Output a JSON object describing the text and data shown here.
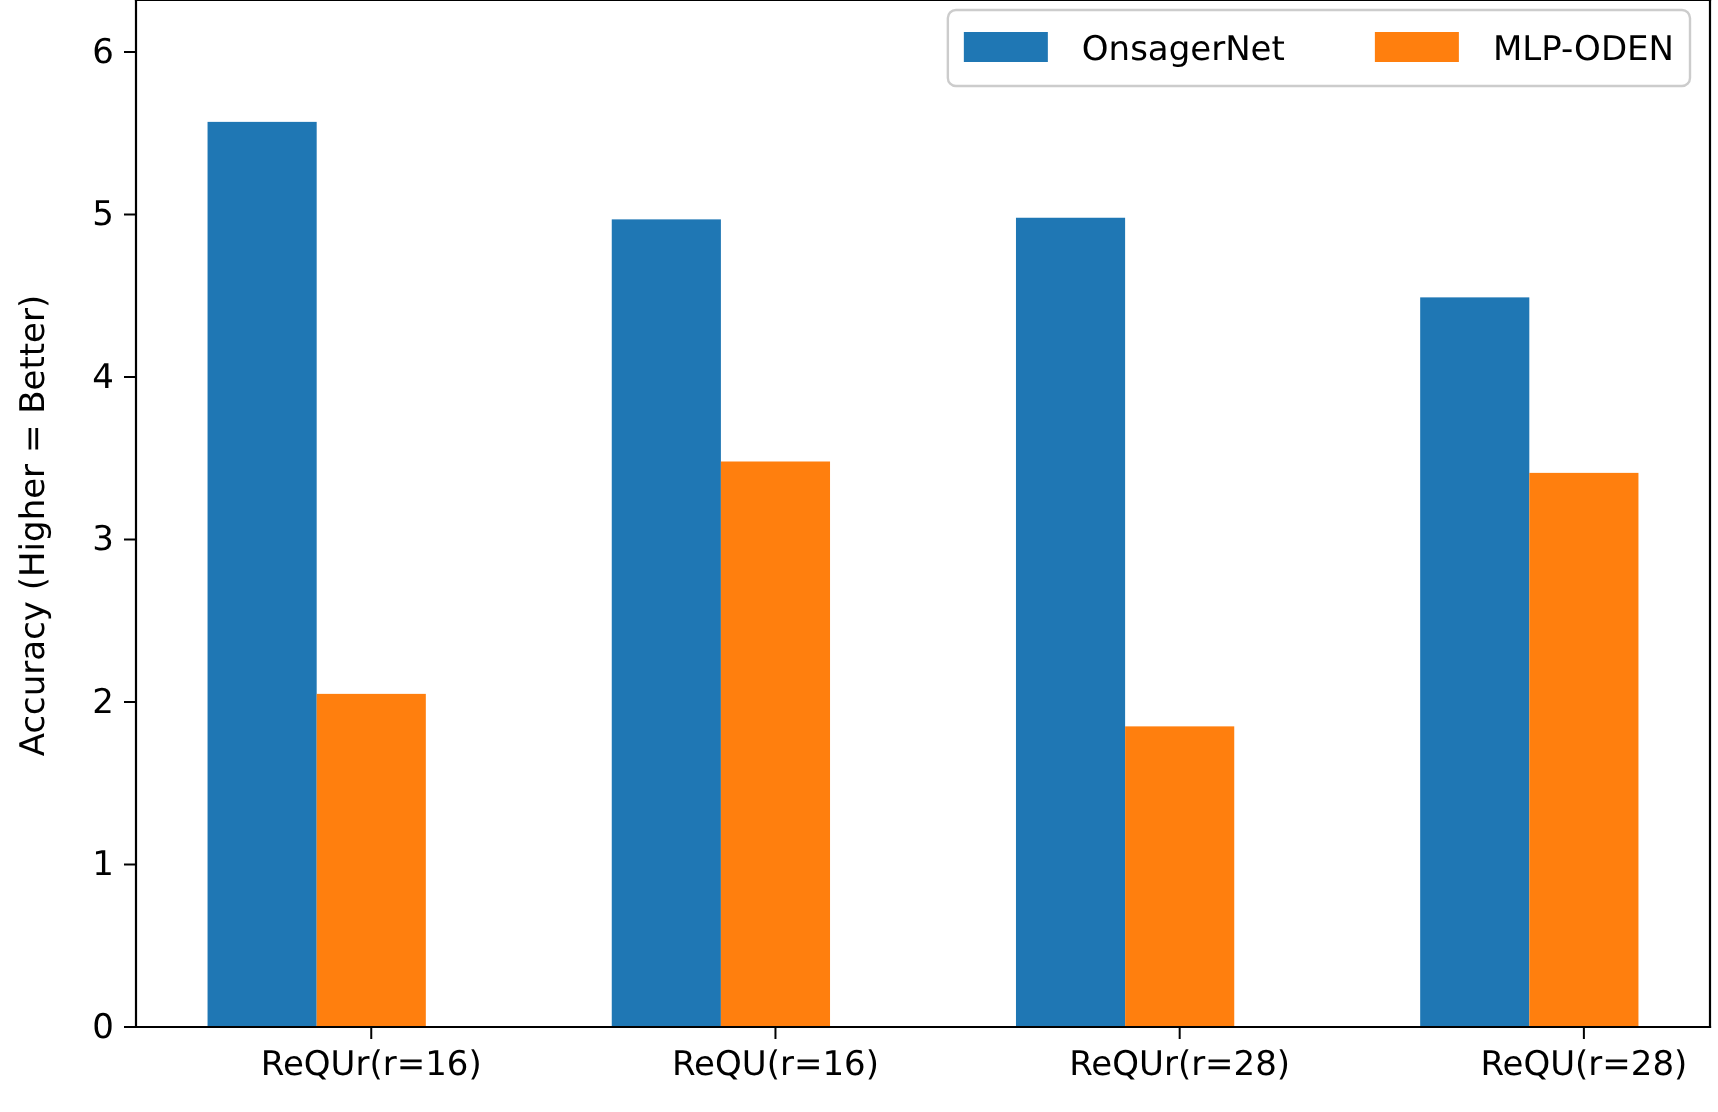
{
  "chart_data": {
    "type": "bar",
    "ylabel": "Accuracy (Higher = Better)",
    "categories": [
      "ReQUr(r=16)",
      "ReQU(r=16)",
      "ReQUr(r=28)",
      "ReQU(r=28)"
    ],
    "series": [
      {
        "name": "OnsagerNet",
        "color": "#1f77b4",
        "values": [
          5.57,
          4.97,
          4.98,
          4.49
        ]
      },
      {
        "name": "MLP-ODEN",
        "color": "#ff7f0e",
        "values": [
          2.05,
          3.48,
          1.85,
          3.41
        ]
      }
    ],
    "ylim": [
      0,
      6.32
    ],
    "yticks": [
      0,
      1,
      2,
      3,
      4,
      5,
      6
    ],
    "legend": "top right"
  }
}
